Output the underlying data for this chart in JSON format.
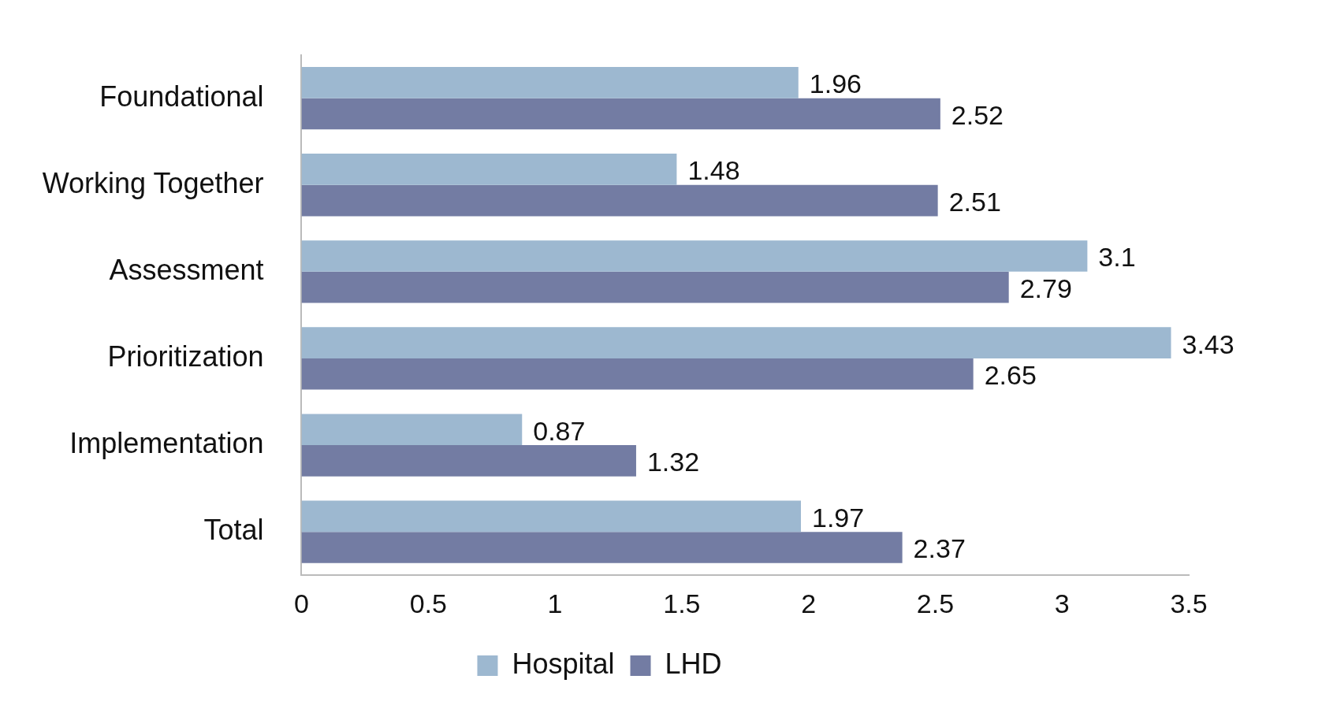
{
  "chart_data": {
    "type": "bar",
    "orientation": "horizontal",
    "categories": [
      "Foundational",
      "Working Together",
      "Assessment",
      "Prioritization",
      "Implementation",
      "Total"
    ],
    "series": [
      {
        "name": "Hospital",
        "color": "#9db8d0",
        "values": [
          1.96,
          1.48,
          3.1,
          3.43,
          0.87,
          1.97
        ]
      },
      {
        "name": "LHD",
        "color": "#737ca3",
        "values": [
          2.52,
          2.51,
          2.79,
          2.65,
          1.32,
          2.37
        ]
      }
    ],
    "xlim": [
      0,
      3.5
    ],
    "xticks": [
      0,
      0.5,
      1,
      1.5,
      2,
      2.5,
      3,
      3.5
    ],
    "grid": false,
    "legend": "bottom",
    "data_labels": true
  }
}
